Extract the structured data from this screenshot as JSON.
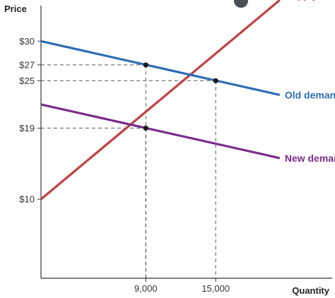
{
  "chart_data": {
    "type": "line",
    "xlabel": "Quantity",
    "ylabel": "Price",
    "xlim": [
      0,
      25000
    ],
    "ylim": [
      0,
      34.5
    ],
    "yticks": [
      {
        "value": 30,
        "label": "$30"
      },
      {
        "value": 27,
        "label": "$27"
      },
      {
        "value": 25,
        "label": "$25"
      },
      {
        "value": 19,
        "label": "$19"
      },
      {
        "value": 10,
        "label": "$10"
      }
    ],
    "xticks": [
      {
        "value": 9000,
        "label": "9,000"
      },
      {
        "value": 15000,
        "label": "15,000"
      }
    ],
    "series": [
      {
        "name": "Supply",
        "color": "#c0403f",
        "points": [
          [
            0,
            10
          ],
          [
            20500,
            35.2
          ]
        ]
      },
      {
        "name": "Old demand",
        "color": "#2d6db5",
        "points": [
          [
            0,
            30
          ],
          [
            20500,
            23.2
          ]
        ]
      },
      {
        "name": "New demand",
        "color": "#7a2c8a",
        "points": [
          [
            0,
            22
          ],
          [
            20500,
            15.2
          ]
        ]
      }
    ],
    "guides": [
      {
        "x": 9000,
        "y": 27
      },
      {
        "x": 15000,
        "y": 25
      },
      {
        "x": 9000,
        "y": 19
      }
    ],
    "points": [
      {
        "x": 9000,
        "y": 27
      },
      {
        "x": 15000,
        "y": 25
      },
      {
        "x": 9000,
        "y": 19
      }
    ]
  }
}
